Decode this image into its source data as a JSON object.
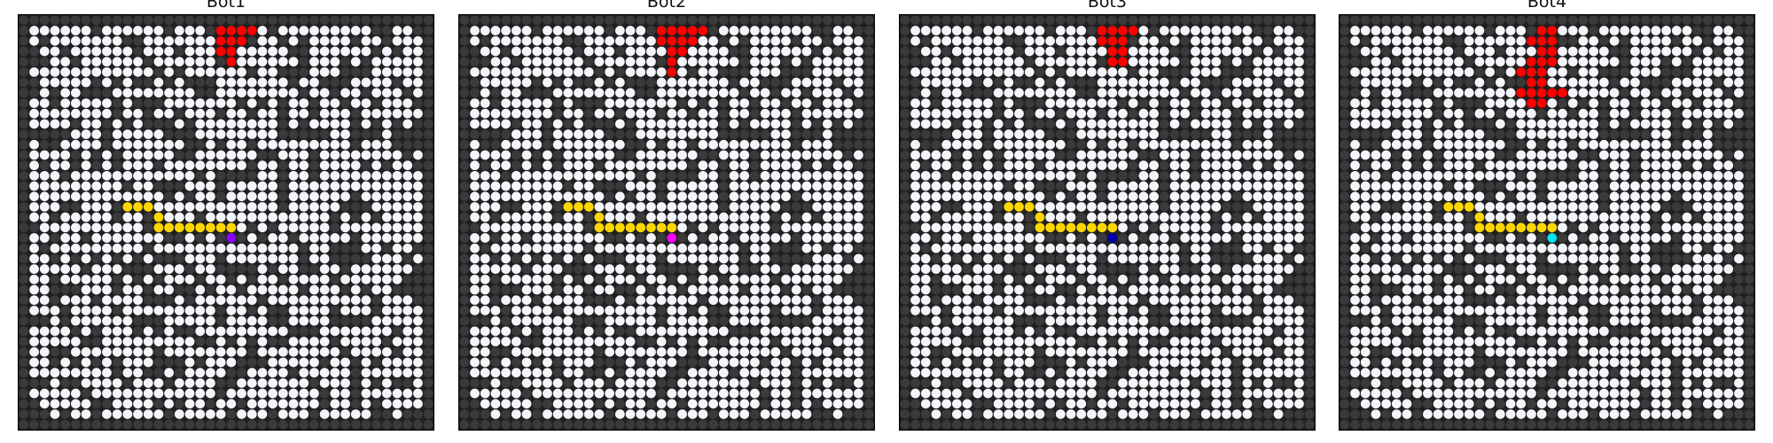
{
  "grid": {
    "rows": 40,
    "cols": 40
  },
  "colors": {
    "background": "#202020",
    "wall": "#3a3a3a",
    "open": "#f4f4fb",
    "fire": "#ff0000",
    "path": "#ffd700"
  },
  "panels": [
    {
      "title": "Bot1",
      "bot": {
        "row": 21,
        "col": 20,
        "color": "#8b00ff"
      },
      "fire": [
        [
          1,
          19
        ],
        [
          1,
          20
        ],
        [
          1,
          21
        ],
        [
          1,
          22
        ],
        [
          2,
          19
        ],
        [
          2,
          20
        ],
        [
          2,
          21
        ],
        [
          3,
          19
        ],
        [
          3,
          20
        ],
        [
          4,
          20
        ]
      ],
      "path": [
        [
          18,
          10
        ],
        [
          18,
          11
        ],
        [
          18,
          12
        ],
        [
          19,
          13
        ],
        [
          20,
          13
        ],
        [
          20,
          14
        ],
        [
          20,
          15
        ],
        [
          20,
          16
        ],
        [
          20,
          17
        ],
        [
          20,
          18
        ],
        [
          20,
          19
        ],
        [
          20,
          20
        ],
        [
          21,
          20
        ]
      ]
    },
    {
      "title": "Bot2",
      "bot": {
        "row": 21,
        "col": 20,
        "color": "#ff00ff"
      },
      "fire": [
        [
          1,
          19
        ],
        [
          1,
          20
        ],
        [
          1,
          21
        ],
        [
          1,
          22
        ],
        [
          1,
          23
        ],
        [
          2,
          19
        ],
        [
          2,
          20
        ],
        [
          2,
          21
        ],
        [
          2,
          22
        ],
        [
          3,
          20
        ],
        [
          3,
          21
        ],
        [
          4,
          20
        ],
        [
          5,
          20
        ]
      ],
      "path": [
        [
          18,
          10
        ],
        [
          18,
          11
        ],
        [
          18,
          12
        ],
        [
          19,
          13
        ],
        [
          20,
          13
        ],
        [
          20,
          14
        ],
        [
          20,
          15
        ],
        [
          20,
          16
        ],
        [
          20,
          17
        ],
        [
          20,
          18
        ],
        [
          20,
          19
        ],
        [
          20,
          20
        ],
        [
          21,
          20
        ]
      ]
    },
    {
      "title": "Bot3",
      "bot": {
        "row": 21,
        "col": 20,
        "color": "#0000aa"
      },
      "fire": [
        [
          1,
          19
        ],
        [
          1,
          20
        ],
        [
          1,
          21
        ],
        [
          1,
          22
        ],
        [
          2,
          19
        ],
        [
          2,
          20
        ],
        [
          2,
          21
        ],
        [
          3,
          20
        ],
        [
          3,
          21
        ],
        [
          4,
          20
        ],
        [
          4,
          21
        ]
      ],
      "path": [
        [
          18,
          10
        ],
        [
          18,
          11
        ],
        [
          18,
          12
        ],
        [
          19,
          13
        ],
        [
          20,
          13
        ],
        [
          20,
          14
        ],
        [
          20,
          15
        ],
        [
          20,
          16
        ],
        [
          20,
          17
        ],
        [
          20,
          18
        ],
        [
          20,
          19
        ],
        [
          20,
          20
        ],
        [
          21,
          20
        ]
      ]
    },
    {
      "title": "Bot4",
      "bot": {
        "row": 21,
        "col": 20,
        "color": "#00e5ee"
      },
      "fire": [
        [
          1,
          19
        ],
        [
          1,
          20
        ],
        [
          2,
          18
        ],
        [
          2,
          19
        ],
        [
          2,
          20
        ],
        [
          3,
          19
        ],
        [
          3,
          20
        ],
        [
          4,
          18
        ],
        [
          4,
          19
        ],
        [
          4,
          20
        ],
        [
          5,
          17
        ],
        [
          5,
          18
        ],
        [
          5,
          19
        ],
        [
          6,
          18
        ],
        [
          6,
          19
        ],
        [
          7,
          17
        ],
        [
          7,
          18
        ],
        [
          7,
          19
        ],
        [
          7,
          20
        ],
        [
          7,
          21
        ],
        [
          8,
          18
        ],
        [
          8,
          19
        ]
      ],
      "path": [
        [
          18,
          10
        ],
        [
          18,
          11
        ],
        [
          18,
          12
        ],
        [
          19,
          13
        ],
        [
          20,
          13
        ],
        [
          20,
          14
        ],
        [
          20,
          15
        ],
        [
          20,
          16
        ],
        [
          20,
          17
        ],
        [
          20,
          18
        ],
        [
          20,
          19
        ],
        [
          20,
          20
        ],
        [
          21,
          20
        ]
      ]
    }
  ]
}
